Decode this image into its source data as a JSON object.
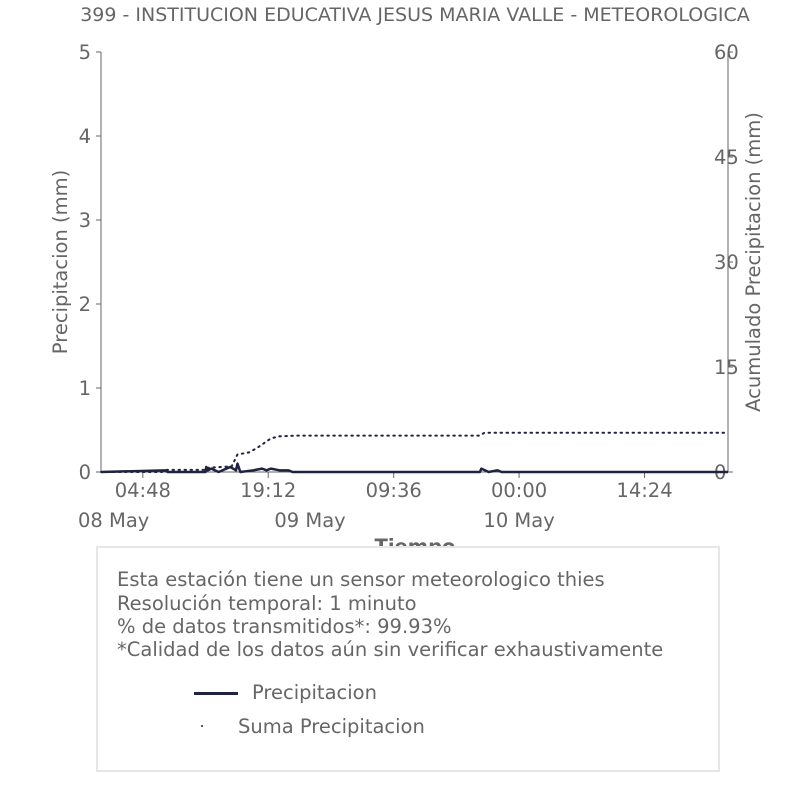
{
  "chart_data": {
    "type": "line",
    "title": "399 - INSTITUCION EDUCATIVA JESUS MARIA VALLE - METEOROLOGICA",
    "xlabel": "Tiempo",
    "ylabel": "Precipitacion (mm)",
    "y2label": "Acumulado Precipitacion (mm)",
    "ylim": [
      0,
      5
    ],
    "y2lim": [
      0,
      60
    ],
    "yticks": [
      "0",
      "1",
      "2",
      "3",
      "4",
      "5"
    ],
    "y2ticks": [
      "0",
      "15",
      "30",
      "45",
      "60"
    ],
    "xlim": [
      "2024-05-08 00:00",
      "2024-05-10 23:59"
    ],
    "xticks": [
      {
        "t": "2024-05-08 04:48",
        "label": "04:48"
      },
      {
        "t": "2024-05-08 19:12",
        "label": "19:12"
      },
      {
        "t": "2024-05-09 09:36",
        "label": "09:36"
      },
      {
        "t": "2024-05-10 00:00",
        "label": "00:00"
      },
      {
        "t": "2024-05-10 14:24",
        "label": "14:24"
      }
    ],
    "date_labels": [
      {
        "t": "2024-05-08 00:00",
        "label": "08 May"
      },
      {
        "t": "2024-05-09 00:00",
        "label": "09 May"
      },
      {
        "t": "2024-05-10 00:00",
        "label": "10 May"
      }
    ],
    "grid": false,
    "series": [
      {
        "name": "Precipitacion",
        "axis": "left",
        "style": "solid",
        "color": "#1f2240",
        "points": [
          [
            "2024-05-08 00:00",
            0.0
          ],
          [
            "2024-05-08 07:20",
            0.02
          ],
          [
            "2024-05-08 07:40",
            0.0
          ],
          [
            "2024-05-08 12:00",
            0.0
          ],
          [
            "2024-05-08 12:05",
            0.06
          ],
          [
            "2024-05-08 12:15",
            0.02
          ],
          [
            "2024-05-08 12:40",
            0.04
          ],
          [
            "2024-05-08 13:30",
            0.0
          ],
          [
            "2024-05-08 14:50",
            0.06
          ],
          [
            "2024-05-08 15:30",
            0.02
          ],
          [
            "2024-05-08 15:40",
            0.1
          ],
          [
            "2024-05-08 16:00",
            0.0
          ],
          [
            "2024-05-08 17:30",
            0.02
          ],
          [
            "2024-05-08 18:30",
            0.04
          ],
          [
            "2024-05-08 19:00",
            0.02
          ],
          [
            "2024-05-08 19:30",
            0.04
          ],
          [
            "2024-05-08 20:30",
            0.02
          ],
          [
            "2024-05-08 21:30",
            0.02
          ],
          [
            "2024-05-08 22:00",
            0.0
          ],
          [
            "2024-05-09 19:30",
            0.0
          ],
          [
            "2024-05-09 19:40",
            0.04
          ],
          [
            "2024-05-09 20:30",
            0.0
          ],
          [
            "2024-05-09 21:30",
            0.02
          ],
          [
            "2024-05-09 22:00",
            0.0
          ],
          [
            "2024-05-10 23:59",
            0.0
          ]
        ]
      },
      {
        "name": "Suma Precipitacion",
        "axis": "right",
        "style": "dotted",
        "color": "#1f2240",
        "points": [
          [
            "2024-05-08 00:00",
            0.0
          ],
          [
            "2024-05-08 07:00",
            0.0
          ],
          [
            "2024-05-08 07:30",
            0.3
          ],
          [
            "2024-05-08 12:00",
            0.3
          ],
          [
            "2024-05-08 12:10",
            0.6
          ],
          [
            "2024-05-08 15:00",
            0.8
          ],
          [
            "2024-05-08 15:40",
            2.5
          ],
          [
            "2024-05-08 17:00",
            2.8
          ],
          [
            "2024-05-08 18:00",
            3.5
          ],
          [
            "2024-05-08 19:30",
            4.8
          ],
          [
            "2024-05-08 20:30",
            5.1
          ],
          [
            "2024-05-08 22:30",
            5.2
          ],
          [
            "2024-05-09 19:30",
            5.2
          ],
          [
            "2024-05-09 20:00",
            5.6
          ],
          [
            "2024-05-10 23:59",
            5.6
          ]
        ]
      }
    ]
  },
  "info": {
    "lines": [
      "Esta estación tiene un sensor meteorologico thies",
      "Resolución temporal: 1 minuto",
      "% de datos transmitidos*: 99.93%",
      "*Calidad de los datos aún sin verificar exhaustivamente"
    ]
  },
  "legend": {
    "items": [
      {
        "label": "Precipitacion"
      },
      {
        "label": "Suma Precipitacion"
      }
    ]
  }
}
